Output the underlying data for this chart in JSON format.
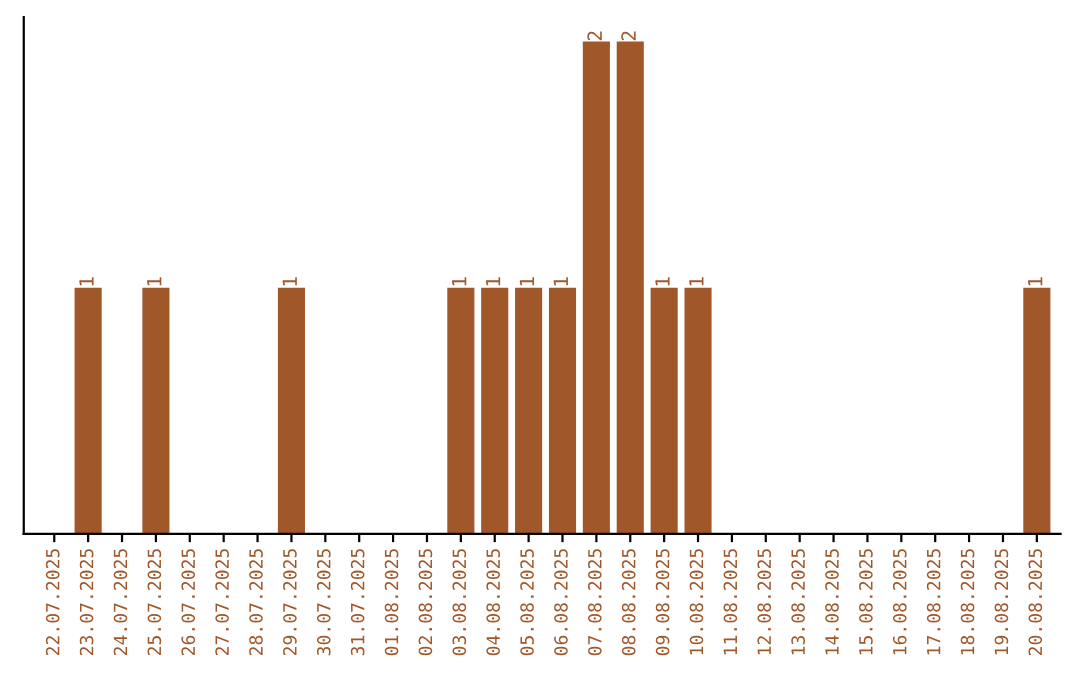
{
  "chart_data": {
    "type": "bar",
    "categories": [
      "22.07.2025",
      "23.07.2025",
      "24.07.2025",
      "25.07.2025",
      "26.07.2025",
      "27.07.2025",
      "28.07.2025",
      "29.07.2025",
      "30.07.2025",
      "31.07.2025",
      "01.08.2025",
      "02.08.2025",
      "03.08.2025",
      "04.08.2025",
      "05.08.2025",
      "06.08.2025",
      "07.08.2025",
      "08.08.2025",
      "09.08.2025",
      "10.08.2025",
      "11.08.2025",
      "12.08.2025",
      "13.08.2025",
      "14.08.2025",
      "15.08.2025",
      "16.08.2025",
      "17.08.2025",
      "18.08.2025",
      "19.08.2025",
      "20.08.2025"
    ],
    "values": [
      0,
      1,
      0,
      1,
      0,
      0,
      0,
      1,
      0,
      0,
      0,
      0,
      1,
      1,
      1,
      1,
      2,
      2,
      1,
      1,
      0,
      0,
      0,
      0,
      0,
      0,
      0,
      0,
      0,
      1
    ],
    "value_labels": [
      null,
      "1",
      null,
      "1",
      null,
      null,
      null,
      "1",
      null,
      null,
      null,
      null,
      "1",
      "1",
      "1",
      "1",
      "2",
      "2",
      "1",
      "1",
      null,
      null,
      null,
      null,
      null,
      null,
      null,
      null,
      null,
      "1"
    ],
    "color": "#a0582a",
    "tick_labels": "x",
    "grid": false,
    "legend": false
  }
}
